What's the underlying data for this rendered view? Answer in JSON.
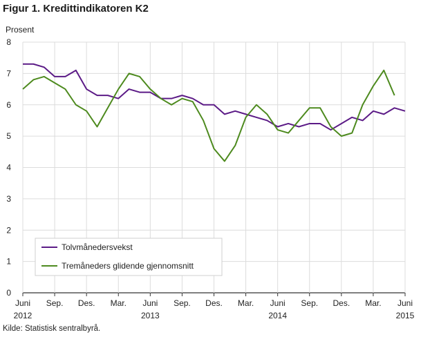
{
  "figure": {
    "title": "Figur 1. Kredittindikatoren K2",
    "source": "Kilde: Statistisk sentralbyrå."
  },
  "chart_data": {
    "type": "line",
    "title": "Figur 1. Kredittindikatoren K2",
    "xlabel": "",
    "ylabel": "Prosent",
    "ylim": [
      0,
      8
    ],
    "yticks": [
      0,
      1,
      2,
      3,
      4,
      5,
      6,
      7,
      8
    ],
    "grid": true,
    "legend": "bottom-left",
    "x": [
      "2012-06",
      "2012-07",
      "2012-08",
      "2012-09",
      "2012-10",
      "2012-11",
      "2012-12",
      "2013-01",
      "2013-02",
      "2013-03",
      "2013-04",
      "2013-05",
      "2013-06",
      "2013-07",
      "2013-08",
      "2013-09",
      "2013-10",
      "2013-11",
      "2013-12",
      "2014-01",
      "2014-02",
      "2014-03",
      "2014-04",
      "2014-05",
      "2014-06",
      "2014-07",
      "2014-08",
      "2014-09",
      "2014-10",
      "2014-11",
      "2014-12",
      "2015-01",
      "2015-02",
      "2015-03",
      "2015-04",
      "2015-05",
      "2015-06"
    ],
    "xtick_labels": [
      {
        "at": "2012-06",
        "label": "Juni",
        "year": "2012"
      },
      {
        "at": "2012-09",
        "label": "Sep.",
        "year": ""
      },
      {
        "at": "2012-12",
        "label": "Des.",
        "year": ""
      },
      {
        "at": "2013-03",
        "label": "Mar.",
        "year": ""
      },
      {
        "at": "2013-06",
        "label": "Juni",
        "year": "2013"
      },
      {
        "at": "2013-09",
        "label": "Sep.",
        "year": ""
      },
      {
        "at": "2013-12",
        "label": "Des.",
        "year": ""
      },
      {
        "at": "2014-03",
        "label": "Mar.",
        "year": ""
      },
      {
        "at": "2014-06",
        "label": "Juni",
        "year": "2014"
      },
      {
        "at": "2014-09",
        "label": "Sep.",
        "year": ""
      },
      {
        "at": "2014-12",
        "label": "Des.",
        "year": ""
      },
      {
        "at": "2015-03",
        "label": "Mar.",
        "year": ""
      },
      {
        "at": "2015-06",
        "label": "Juni",
        "year": "2015"
      }
    ],
    "series": [
      {
        "name": "Tolvmånedersvekst",
        "color": "#5b1a86",
        "values": [
          7.3,
          7.3,
          7.2,
          6.9,
          6.9,
          7.1,
          6.5,
          6.3,
          6.3,
          6.2,
          6.5,
          6.4,
          6.4,
          6.2,
          6.2,
          6.3,
          6.2,
          6.0,
          6.0,
          5.7,
          5.8,
          5.7,
          5.6,
          5.5,
          5.3,
          5.4,
          5.3,
          5.4,
          5.4,
          5.2,
          5.4,
          5.6,
          5.5,
          5.8,
          5.7,
          5.9,
          5.8
        ]
      },
      {
        "name": "Tremåneders glidende gjennomsnitt",
        "color": "#4d8a1e",
        "values": [
          6.5,
          6.8,
          6.9,
          6.7,
          6.5,
          6.0,
          5.8,
          5.3,
          5.9,
          6.5,
          7.0,
          6.9,
          6.5,
          6.2,
          6.0,
          6.2,
          6.1,
          5.5,
          4.6,
          4.2,
          4.7,
          5.6,
          6.0,
          5.7,
          5.2,
          5.1,
          5.5,
          5.9,
          5.9,
          5.3,
          5.0,
          5.1,
          6.0,
          6.6,
          7.1,
          6.3,
          null
        ]
      }
    ]
  }
}
